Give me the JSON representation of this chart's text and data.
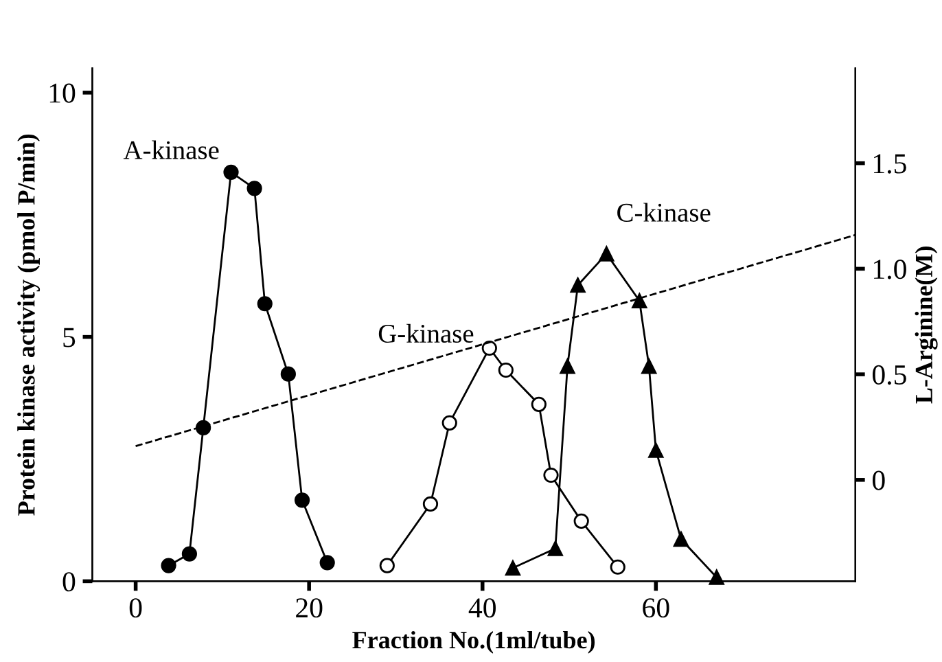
{
  "chart_data": {
    "type": "line",
    "xlabel": "Fraction No.(1ml/tube)",
    "ylabel": "Protein kinase activity (pmol P/min)",
    "y2label": "L-Arginine(M)",
    "xlim": [
      -5,
      83
    ],
    "xticks": [
      0,
      20,
      40,
      60
    ],
    "ylim": [
      0,
      10.5
    ],
    "yticks": [
      0,
      5,
      10
    ],
    "y2lim": [
      -0.48,
      1.95
    ],
    "y2ticks": [
      0,
      0.5,
      {
        "value": 1.0,
        "label": "1.0"
      },
      1.5
    ],
    "grid": false,
    "legend": false,
    "series": [
      {
        "name": "A-kinase",
        "color": "#000000",
        "marker": "circle",
        "line_style": "solid",
        "x": [
          3.8,
          6.2,
          7.8,
          11.0,
          13.7,
          14.9,
          17.6,
          19.2,
          22.1
        ],
        "values": [
          0.32,
          0.56,
          3.14,
          8.37,
          8.04,
          5.68,
          4.24,
          1.66,
          0.38
        ]
      },
      {
        "name": "G-kinase",
        "color": "#000000",
        "marker": "circle",
        "line_style": "solid",
        "x": [
          29.0,
          34.0,
          36.2,
          40.8,
          42.7,
          46.5,
          47.9,
          51.4,
          55.6
        ],
        "values": [
          0.32,
          1.58,
          3.24,
          4.77,
          4.32,
          3.62,
          2.17,
          1.23,
          0.29
        ]
      },
      {
        "name": "C-kinase",
        "color": "#000000",
        "marker": "triangle",
        "line_style": "solid",
        "x": [
          43.5,
          48.4,
          49.8,
          51.0,
          54.3,
          58.1,
          59.2,
          60.0,
          62.9,
          67.0
        ],
        "values": [
          0.27,
          0.67,
          4.4,
          6.06,
          6.7,
          5.74,
          4.4,
          2.68,
          0.86,
          0.08
        ]
      },
      {
        "color": "#000000",
        "marker": "none",
        "line_style": "dashed",
        "axis": "y2",
        "x": [
          0,
          83
        ],
        "values": [
          0.16,
          1.16
        ]
      }
    ]
  }
}
